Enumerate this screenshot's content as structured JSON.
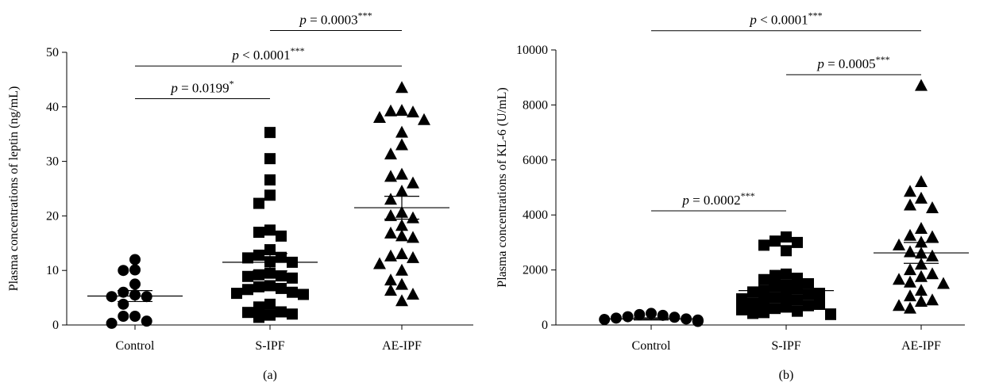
{
  "chart_data": [
    {
      "type": "scatter",
      "panel_label": "(a)",
      "ylabel": "Plasma concentrations of leptin (ng/mL)",
      "xlabel": "",
      "ylim": [
        0,
        50
      ],
      "yticks": [
        "0",
        "10",
        "20",
        "30",
        "40",
        "50"
      ],
      "categories": [
        "Control",
        "S-IPF",
        "AE-IPF"
      ],
      "series": [
        {
          "marker": "circle",
          "mean": 5.3,
          "sem": 1.0,
          "values": [
            12.0,
            10.1,
            10.0,
            7.5,
            6.0,
            5.5,
            5.2,
            5.2,
            3.8,
            1.6,
            1.6,
            0.7,
            0.3
          ]
        },
        {
          "marker": "square",
          "mean": 11.5,
          "sem": 1.6,
          "values": [
            35.3,
            30.5,
            26.6,
            23.8,
            22.3,
            17.4,
            17.0,
            16.3,
            13.8,
            12.8,
            12.4,
            12.3,
            11.6,
            11.5,
            9.5,
            9.2,
            9.0,
            8.9,
            8.6,
            7.2,
            7.0,
            6.7,
            6.5,
            6.0,
            5.8,
            5.6,
            3.8,
            3.3,
            2.4,
            2.3,
            2.0,
            1.8,
            1.4
          ]
        },
        {
          "marker": "triangle",
          "mean": 21.5,
          "sem": 2.1,
          "values": [
            43.5,
            39.3,
            39.2,
            39.0,
            38.0,
            37.6,
            35.3,
            33.0,
            31.3,
            27.6,
            27.2,
            26.0,
            24.5,
            23.0,
            20.6,
            20.0,
            19.6,
            18.2,
            16.8,
            16.3,
            16.0,
            13.0,
            12.6,
            12.3,
            11.2,
            10.0,
            8.2,
            7.4,
            6.3,
            5.6,
            4.4
          ]
        }
      ],
      "annotations": [
        {
          "from": "Control",
          "to": "S-IPF",
          "text": "p = 0.0199",
          "stars": "*",
          "level": 41.5
        },
        {
          "from": "Control",
          "to": "AE-IPF",
          "text": "p < 0.0001",
          "stars": "***",
          "level": 47.5
        },
        {
          "from": "S-IPF",
          "to": "AE-IPF",
          "text": "p = 0.0003",
          "stars": "***",
          "level": 54.0
        }
      ]
    },
    {
      "type": "scatter",
      "panel_label": "(b)",
      "ylabel": "Plasma concentrations of KL-6 (U/mL)",
      "xlabel": "",
      "ylim": [
        0,
        10000
      ],
      "yticks": [
        "0",
        "2000",
        "4000",
        "6000",
        "8000",
        "10000"
      ],
      "categories": [
        "Control",
        "S-IPF",
        "AE-IPF"
      ],
      "series": [
        {
          "marker": "circle",
          "mean": 220,
          "sem": 40,
          "values": [
            420,
            380,
            350,
            300,
            280,
            250,
            220,
            200,
            180,
            170,
            150,
            140,
            130
          ]
        },
        {
          "marker": "square",
          "mean": 1250,
          "sem": 190,
          "values": [
            3200,
            3050,
            3000,
            2900,
            2700,
            1850,
            1800,
            1700,
            1650,
            1500,
            1450,
            1400,
            1300,
            1250,
            1200,
            1150,
            1100,
            1050,
            1000,
            950,
            900,
            850,
            800,
            750,
            700,
            650,
            600,
            550,
            500,
            450,
            420,
            400,
            380
          ]
        },
        {
          "marker": "triangle",
          "mean": 2620,
          "sem": 380,
          "values": [
            8700,
            5200,
            4850,
            4600,
            4350,
            4250,
            3500,
            3250,
            3200,
            3000,
            2900,
            2650,
            2600,
            2500,
            2200,
            2000,
            1850,
            1750,
            1650,
            1550,
            1500,
            1250,
            1050,
            900,
            850,
            700,
            600
          ]
        }
      ],
      "annotations": [
        {
          "from": "Control",
          "to": "S-IPF",
          "text": "p = 0.0002",
          "stars": "***",
          "level": 4150
        },
        {
          "from": "S-IPF",
          "to": "AE-IPF",
          "text": "p = 0.0005",
          "stars": "***",
          "level": 9100
        },
        {
          "from": "Control",
          "to": "AE-IPF",
          "text": "p < 0.0001",
          "stars": "***",
          "level": 10700
        }
      ]
    }
  ]
}
